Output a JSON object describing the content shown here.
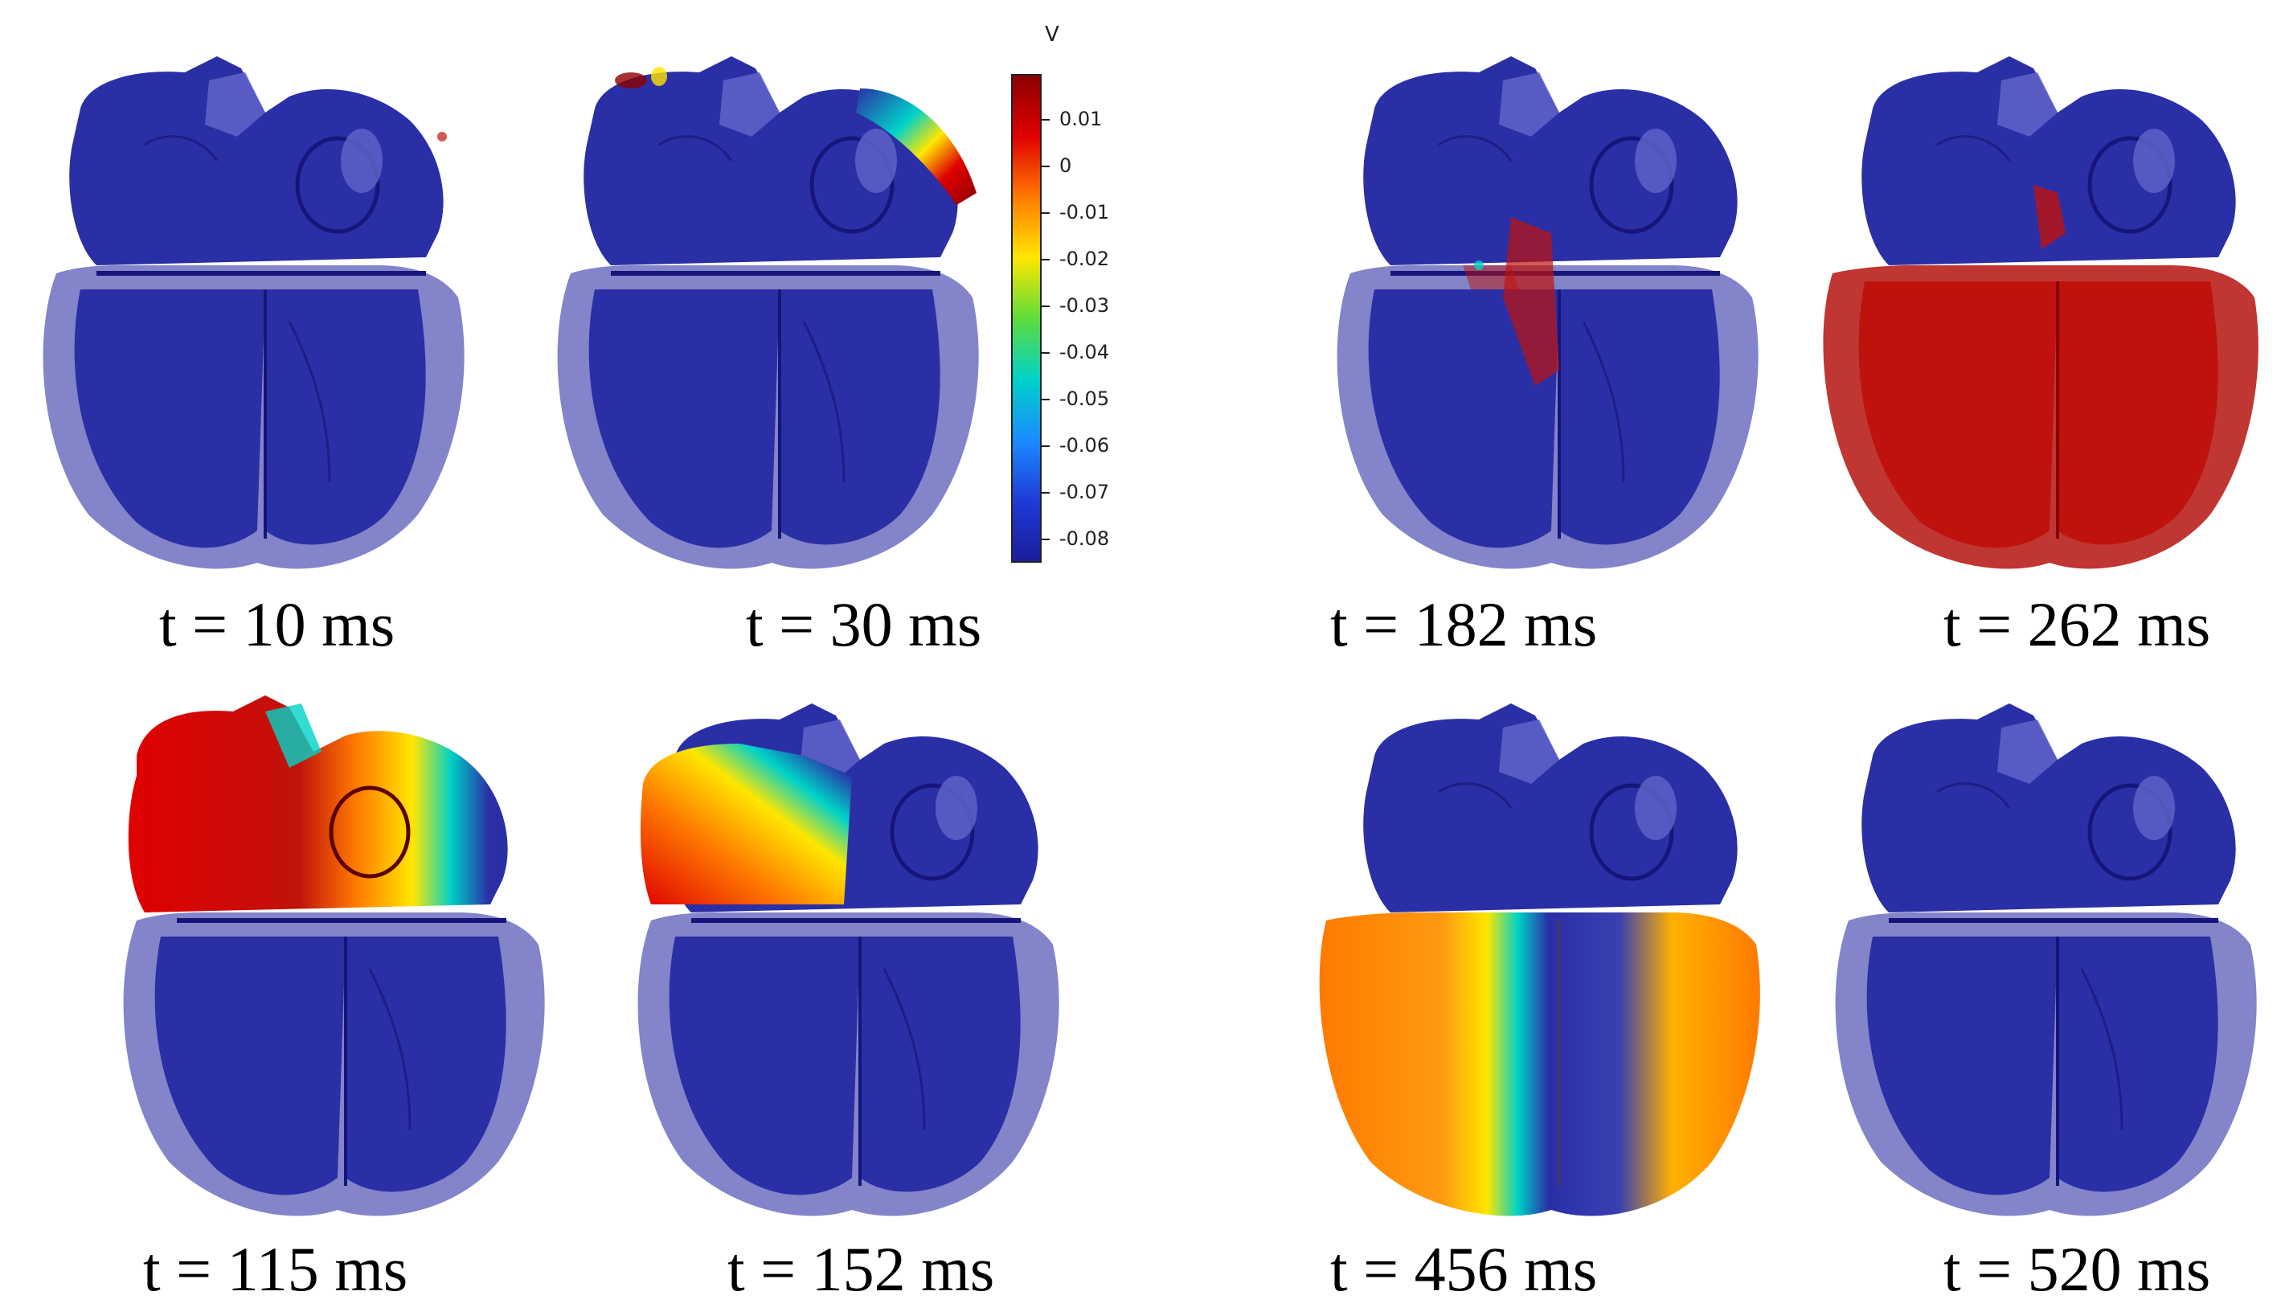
{
  "colorbar": {
    "unit": "V",
    "ticks": [
      "0.01",
      "0",
      "-0.01",
      "-0.02",
      "-0.03",
      "-0.04",
      "-0.05",
      "-0.06",
      "-0.07",
      "-0.08"
    ],
    "colors": [
      "#8b0000",
      "#e00000",
      "#ff7a00",
      "#ffe600",
      "#5fdc3a",
      "#00d2c8",
      "#1a8cff",
      "#1f3bd6",
      "#1c1c9c"
    ]
  },
  "panels": [
    {
      "caption": "t = 10 ms"
    },
    {
      "caption": "t = 30 ms"
    },
    {
      "caption": "t = 182 ms"
    },
    {
      "caption": "t = 262 ms"
    },
    {
      "caption": "t = 115 ms"
    },
    {
      "caption": "t = 152 ms"
    },
    {
      "caption": "t = 456 ms"
    },
    {
      "caption": "t = 520 ms"
    }
  ],
  "colors": {
    "resting": "#2a2fa6",
    "shell": "#6d6fc0",
    "activated": "#c0120c"
  }
}
